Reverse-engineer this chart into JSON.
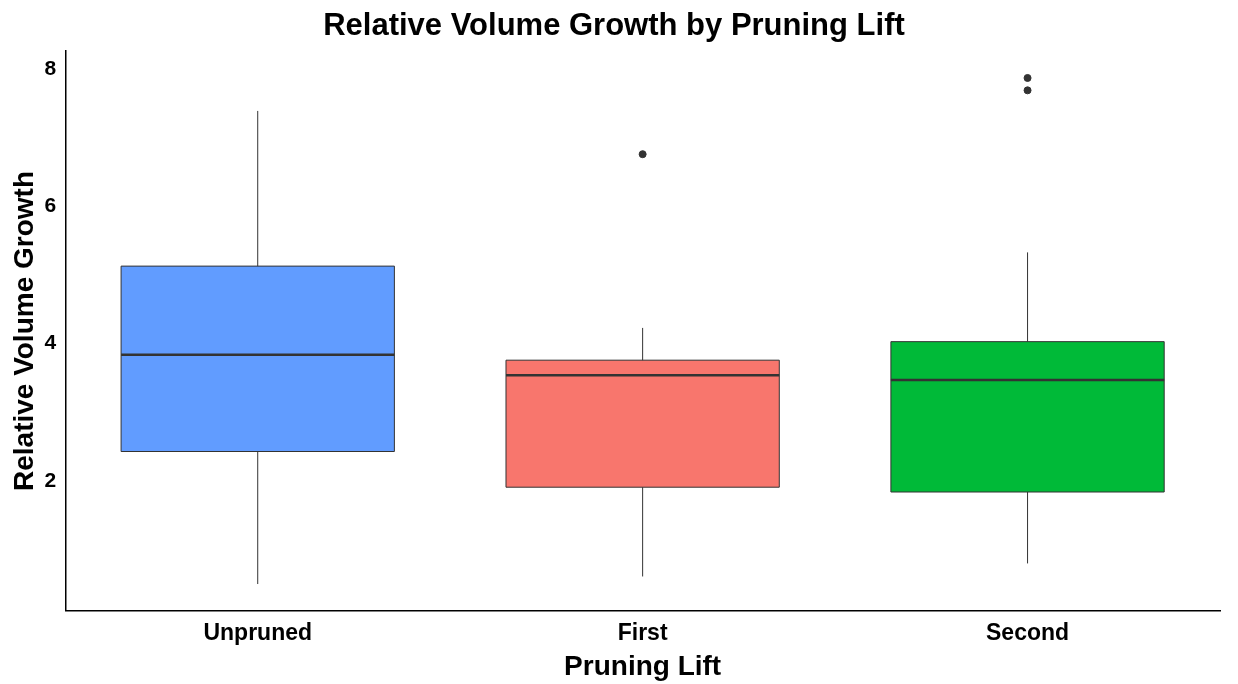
{
  "chart_data": {
    "type": "box",
    "title": "Relative Volume Growth by Pruning Lift",
    "xlabel": "Pruning Lift",
    "ylabel": "Relative Volume Growth",
    "categories": [
      "Unpruned",
      "First",
      "Second"
    ],
    "colors": [
      "#619cff",
      "#f8766d",
      "#00ba38"
    ],
    "boxes": [
      {
        "low": 0.5,
        "q1": 2.43,
        "median": 3.84,
        "q3": 5.13,
        "high": 7.39
      },
      {
        "low": 0.61,
        "q1": 1.91,
        "median": 3.54,
        "q3": 3.76,
        "high": 4.23,
        "outliers": [
          6.76
        ]
      },
      {
        "low": 0.8,
        "q1": 1.84,
        "median": 3.47,
        "q3": 4.03,
        "high": 5.33,
        "outliers": [
          7.87,
          7.69
        ]
      }
    ],
    "ylim": [
      0.11,
      8.26
    ],
    "yticks": [
      2,
      4,
      6,
      8
    ],
    "grid": false,
    "legend": false
  }
}
